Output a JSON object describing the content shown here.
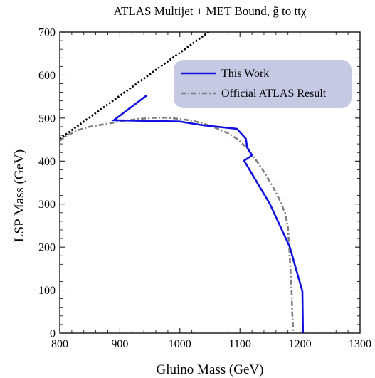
{
  "chart_data": {
    "type": "line",
    "title": "ATLAS Multijet + MET Bound, g̃ to ttχ",
    "xlabel": "Gluino Mass (GeV)",
    "ylabel": "LSP Mass (GeV)",
    "xlim": [
      800,
      1300
    ],
    "ylim": [
      0,
      700
    ],
    "x_ticks": [
      "800",
      "900",
      "1000",
      "1100",
      "1200",
      "1300"
    ],
    "y_ticks": [
      "0",
      "100",
      "200",
      "300",
      "400",
      "500",
      "600",
      "700"
    ],
    "grid": false,
    "legend_position": "top-right",
    "series": [
      {
        "name": "This Work",
        "color": "#1010e0",
        "style": "solid",
        "points": [
          [
            945,
            553
          ],
          [
            890,
            495
          ],
          [
            1000,
            492
          ],
          [
            1040,
            483
          ],
          [
            1095,
            475
          ],
          [
            1110,
            452
          ],
          [
            1112,
            432
          ],
          [
            1120,
            413
          ],
          [
            1107,
            401
          ],
          [
            1150,
            300
          ],
          [
            1183,
            200
          ],
          [
            1204,
            97
          ],
          [
            1205,
            0
          ]
        ]
      },
      {
        "name": "Official ATLAS Result",
        "color": "#808080",
        "style": "dashdot",
        "points": [
          [
            800,
            447
          ],
          [
            810,
            458
          ],
          [
            830,
            472
          ],
          [
            850,
            480
          ],
          [
            880,
            487
          ],
          [
            900,
            492
          ],
          [
            930,
            498
          ],
          [
            960,
            501
          ],
          [
            980,
            501
          ],
          [
            1000,
            498
          ],
          [
            1020,
            494
          ],
          [
            1040,
            487
          ],
          [
            1060,
            477
          ],
          [
            1080,
            465
          ],
          [
            1095,
            452
          ],
          [
            1110,
            433
          ],
          [
            1125,
            406
          ],
          [
            1140,
            375
          ],
          [
            1155,
            340
          ],
          [
            1165,
            313
          ],
          [
            1175,
            280
          ],
          [
            1180,
            245
          ],
          [
            1182,
            200
          ],
          [
            1184,
            150
          ],
          [
            1186,
            100
          ],
          [
            1187,
            50
          ],
          [
            1189,
            0
          ]
        ]
      },
      {
        "name": "",
        "color": "#000000",
        "style": "dotted",
        "points": [
          [
            800,
            452
          ],
          [
            1048,
            700
          ]
        ]
      }
    ]
  }
}
